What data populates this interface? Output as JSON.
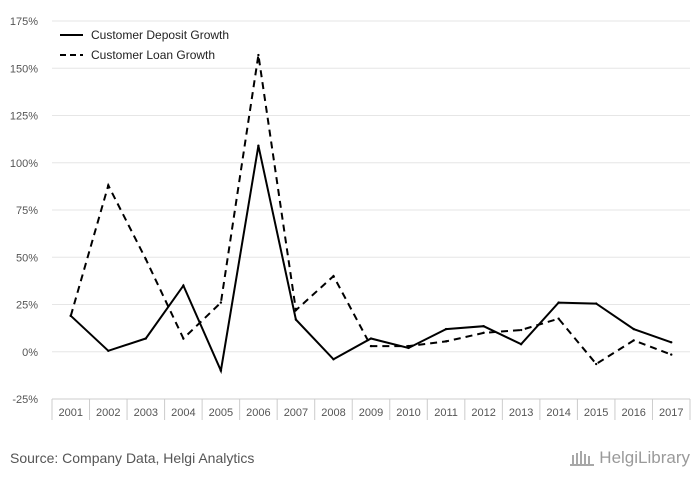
{
  "chart_data": {
    "type": "line",
    "categories": [
      "2001",
      "2002",
      "2003",
      "2004",
      "2005",
      "2006",
      "2007",
      "2008",
      "2009",
      "2010",
      "2011",
      "2012",
      "2013",
      "2014",
      "2015",
      "2016",
      "2017"
    ],
    "series": [
      {
        "name": "Customer Deposit Growth",
        "style": "solid",
        "color": "#000000",
        "values": [
          19,
          0.5,
          7,
          35,
          -10,
          109,
          17,
          -4,
          7,
          2,
          12,
          13.5,
          4,
          26,
          25.5,
          12,
          5
        ]
      },
      {
        "name": "Customer Loan Growth",
        "style": "dashed",
        "color": "#000000",
        "values": [
          19,
          88,
          49,
          7,
          26,
          157,
          22,
          40,
          3,
          3,
          5.5,
          10,
          11.5,
          17.5,
          -6.5,
          6,
          -1.5
        ]
      }
    ],
    "y_ticks": [
      "-25%",
      "0%",
      "25%",
      "50%",
      "75%",
      "100%",
      "125%",
      "150%",
      "175%"
    ],
    "ylim": [
      -25,
      175
    ],
    "y_unit": "%",
    "grid": true,
    "legend_position": "top-left",
    "title": "",
    "xlabel": "",
    "ylabel": ""
  },
  "footer": {
    "source": "Source: Company Data, Helgi Analytics",
    "brand": "HelgiLibrary"
  },
  "icons": {
    "brand_logo": "library-building-icon"
  }
}
